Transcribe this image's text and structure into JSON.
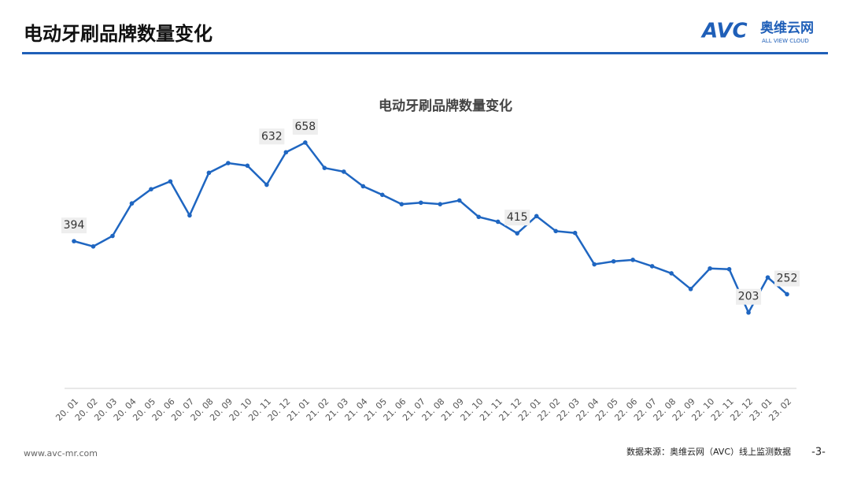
{
  "header": {
    "title": "电动牙刷品牌数量变化",
    "logo": {
      "brand": "AVC",
      "name": "奥维云网",
      "tagline": "ALL VIEW CLOUD"
    }
  },
  "chart_data": {
    "type": "line",
    "title": "电动牙刷品牌数量变化",
    "categories": [
      "20. 01",
      "20. 02",
      "20. 03",
      "20. 04",
      "20. 05",
      "20. 06",
      "20. 07",
      "20. 08",
      "20. 09",
      "20. 10",
      "20. 11",
      "20. 12",
      "21. 01",
      "21. 02",
      "21. 03",
      "21. 04",
      "21. 05",
      "21. 06",
      "21. 07",
      "21. 08",
      "21. 09",
      "21. 10",
      "21. 11",
      "21. 12",
      "22. 01",
      "22. 02",
      "22. 03",
      "22. 04",
      "22. 05",
      "22. 06",
      "22. 07",
      "22. 08",
      "22. 09",
      "22. 10",
      "22. 11",
      "22. 12",
      "23. 01",
      "23. 02"
    ],
    "series": [
      {
        "name": "品牌数量",
        "color": "#1f66c1",
        "values": [
          394,
          380,
          408,
          495,
          533,
          554,
          463,
          577,
          603,
          596,
          545,
          632,
          658,
          590,
          580,
          541,
          518,
          493,
          497,
          493,
          503,
          459,
          446,
          415,
          461,
          421,
          416,
          332,
          340,
          344,
          327,
          308,
          266,
          321,
          319,
          203,
          297,
          252
        ],
        "value_labels": [
          "394",
          null,
          null,
          null,
          null,
          null,
          null,
          null,
          null,
          null,
          null,
          "632",
          "658",
          null,
          null,
          null,
          null,
          null,
          null,
          null,
          null,
          null,
          null,
          "415",
          null,
          null,
          null,
          null,
          null,
          null,
          null,
          null,
          null,
          null,
          null,
          "203",
          null,
          "252"
        ]
      }
    ],
    "ylim": [
      0,
      700
    ]
  },
  "footer": {
    "website": "www.avc-mr.com",
    "source": "数据来源：奥维云网（AVC）线上监测数据",
    "page": "-3-"
  }
}
